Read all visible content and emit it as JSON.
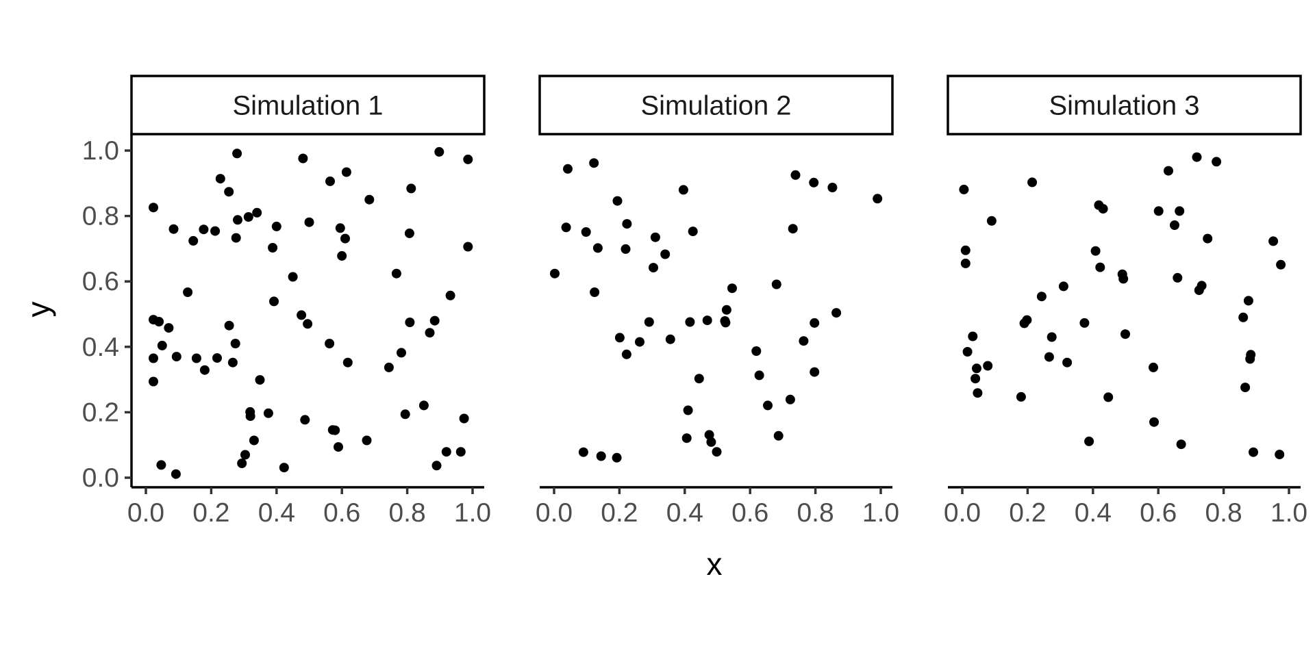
{
  "chart_data": {
    "type": "scatter",
    "xlabel": "x",
    "ylabel": "y",
    "xlim": [
      0,
      1
    ],
    "ylim": [
      0,
      1
    ],
    "x_ticks": [
      "0.0",
      "0.2",
      "0.4",
      "0.6",
      "0.8",
      "1.0"
    ],
    "y_ticks": [
      "0.0",
      "0.2",
      "0.4",
      "0.6",
      "0.8",
      "1.0"
    ],
    "grid": false,
    "point_color": "#000000",
    "panels": [
      {
        "title": "Simulation 1",
        "points": [
          [
            0.023,
            0.826
          ],
          [
            0.023,
            0.483
          ],
          [
            0.023,
            0.365
          ],
          [
            0.023,
            0.294
          ],
          [
            0.04,
            0.477
          ],
          [
            0.047,
            0.039
          ],
          [
            0.05,
            0.404
          ],
          [
            0.07,
            0.458
          ],
          [
            0.085,
            0.76
          ],
          [
            0.092,
            0.011
          ],
          [
            0.094,
            0.37
          ],
          [
            0.128,
            0.567
          ],
          [
            0.145,
            0.724
          ],
          [
            0.155,
            0.365
          ],
          [
            0.177,
            0.759
          ],
          [
            0.18,
            0.329
          ],
          [
            0.212,
            0.754
          ],
          [
            0.218,
            0.366
          ],
          [
            0.228,
            0.914
          ],
          [
            0.254,
            0.874
          ],
          [
            0.255,
            0.465
          ],
          [
            0.266,
            0.352
          ],
          [
            0.274,
            0.41
          ],
          [
            0.276,
            0.733
          ],
          [
            0.279,
            0.991
          ],
          [
            0.281,
            0.788
          ],
          [
            0.294,
            0.044
          ],
          [
            0.304,
            0.07
          ],
          [
            0.314,
            0.797
          ],
          [
            0.319,
            0.201
          ],
          [
            0.32,
            0.188
          ],
          [
            0.331,
            0.114
          ],
          [
            0.34,
            0.81
          ],
          [
            0.349,
            0.299
          ],
          [
            0.375,
            0.197
          ],
          [
            0.388,
            0.703
          ],
          [
            0.392,
            0.539
          ],
          [
            0.4,
            0.768
          ],
          [
            0.423,
            0.031
          ],
          [
            0.45,
            0.614
          ],
          [
            0.476,
            0.497
          ],
          [
            0.481,
            0.976
          ],
          [
            0.487,
            0.177
          ],
          [
            0.495,
            0.47
          ],
          [
            0.5,
            0.781
          ],
          [
            0.562,
            0.41
          ],
          [
            0.564,
            0.906
          ],
          [
            0.572,
            0.146
          ],
          [
            0.579,
            0.145
          ],
          [
            0.589,
            0.094
          ],
          [
            0.595,
            0.763
          ],
          [
            0.6,
            0.678
          ],
          [
            0.61,
            0.731
          ],
          [
            0.614,
            0.934
          ],
          [
            0.618,
            0.352
          ],
          [
            0.676,
            0.114
          ],
          [
            0.684,
            0.85
          ],
          [
            0.744,
            0.337
          ],
          [
            0.767,
            0.624
          ],
          [
            0.782,
            0.382
          ],
          [
            0.794,
            0.194
          ],
          [
            0.807,
            0.747
          ],
          [
            0.808,
            0.475
          ],
          [
            0.812,
            0.884
          ],
          [
            0.851,
            0.221
          ],
          [
            0.869,
            0.443
          ],
          [
            0.884,
            0.48
          ],
          [
            0.89,
            0.037
          ],
          [
            0.898,
            0.996
          ],
          [
            0.92,
            0.079
          ],
          [
            0.932,
            0.557
          ],
          [
            0.964,
            0.079
          ],
          [
            0.974,
            0.181
          ],
          [
            0.986,
            0.973
          ],
          [
            0.986,
            0.706
          ]
        ]
      },
      {
        "title": "Simulation 2",
        "points": [
          [
            0.002,
            0.624
          ],
          [
            0.042,
            0.944
          ],
          [
            0.037,
            0.765
          ],
          [
            0.09,
            0.078
          ],
          [
            0.098,
            0.751
          ],
          [
            0.122,
            0.962
          ],
          [
            0.124,
            0.567
          ],
          [
            0.134,
            0.702
          ],
          [
            0.144,
            0.066
          ],
          [
            0.192,
            0.061
          ],
          [
            0.194,
            0.846
          ],
          [
            0.201,
            0.428
          ],
          [
            0.219,
            0.699
          ],
          [
            0.223,
            0.776
          ],
          [
            0.222,
            0.377
          ],
          [
            0.262,
            0.415
          ],
          [
            0.291,
            0.476
          ],
          [
            0.304,
            0.642
          ],
          [
            0.31,
            0.735
          ],
          [
            0.34,
            0.683
          ],
          [
            0.356,
            0.423
          ],
          [
            0.396,
            0.88
          ],
          [
            0.406,
            0.121
          ],
          [
            0.41,
            0.206
          ],
          [
            0.416,
            0.476
          ],
          [
            0.425,
            0.753
          ],
          [
            0.444,
            0.303
          ],
          [
            0.469,
            0.481
          ],
          [
            0.475,
            0.131
          ],
          [
            0.481,
            0.109
          ],
          [
            0.498,
            0.079
          ],
          [
            0.523,
            0.479
          ],
          [
            0.525,
            0.474
          ],
          [
            0.528,
            0.513
          ],
          [
            0.545,
            0.579
          ],
          [
            0.619,
            0.387
          ],
          [
            0.628,
            0.313
          ],
          [
            0.654,
            0.221
          ],
          [
            0.681,
            0.591
          ],
          [
            0.687,
            0.128
          ],
          [
            0.723,
            0.239
          ],
          [
            0.731,
            0.761
          ],
          [
            0.739,
            0.925
          ],
          [
            0.764,
            0.418
          ],
          [
            0.795,
            0.902
          ],
          [
            0.797,
            0.473
          ],
          [
            0.797,
            0.323
          ],
          [
            0.852,
            0.887
          ],
          [
            0.864,
            0.504
          ],
          [
            0.99,
            0.853
          ]
        ]
      },
      {
        "title": "Simulation 3",
        "points": [
          [
            0.005,
            0.881
          ],
          [
            0.01,
            0.695
          ],
          [
            0.01,
            0.655
          ],
          [
            0.016,
            0.385
          ],
          [
            0.032,
            0.432
          ],
          [
            0.04,
            0.303
          ],
          [
            0.044,
            0.334
          ],
          [
            0.047,
            0.259
          ],
          [
            0.078,
            0.342
          ],
          [
            0.09,
            0.785
          ],
          [
            0.18,
            0.247
          ],
          [
            0.19,
            0.472
          ],
          [
            0.198,
            0.482
          ],
          [
            0.214,
            0.903
          ],
          [
            0.243,
            0.554
          ],
          [
            0.266,
            0.369
          ],
          [
            0.274,
            0.43
          ],
          [
            0.31,
            0.585
          ],
          [
            0.321,
            0.352
          ],
          [
            0.374,
            0.473
          ],
          [
            0.388,
            0.111
          ],
          [
            0.408,
            0.693
          ],
          [
            0.418,
            0.833
          ],
          [
            0.422,
            0.643
          ],
          [
            0.431,
            0.822
          ],
          [
            0.447,
            0.246
          ],
          [
            0.49,
            0.622
          ],
          [
            0.493,
            0.608
          ],
          [
            0.499,
            0.439
          ],
          [
            0.585,
            0.337
          ],
          [
            0.587,
            0.17
          ],
          [
            0.601,
            0.815
          ],
          [
            0.631,
            0.938
          ],
          [
            0.65,
            0.772
          ],
          [
            0.659,
            0.611
          ],
          [
            0.665,
            0.815
          ],
          [
            0.67,
            0.102
          ],
          [
            0.718,
            0.98
          ],
          [
            0.725,
            0.573
          ],
          [
            0.733,
            0.587
          ],
          [
            0.751,
            0.731
          ],
          [
            0.778,
            0.966
          ],
          [
            0.86,
            0.49
          ],
          [
            0.866,
            0.276
          ],
          [
            0.876,
            0.541
          ],
          [
            0.881,
            0.363
          ],
          [
            0.883,
            0.376
          ],
          [
            0.891,
            0.078
          ],
          [
            0.952,
            0.723
          ],
          [
            0.971,
            0.071
          ],
          [
            0.975,
            0.651
          ]
        ]
      }
    ]
  }
}
